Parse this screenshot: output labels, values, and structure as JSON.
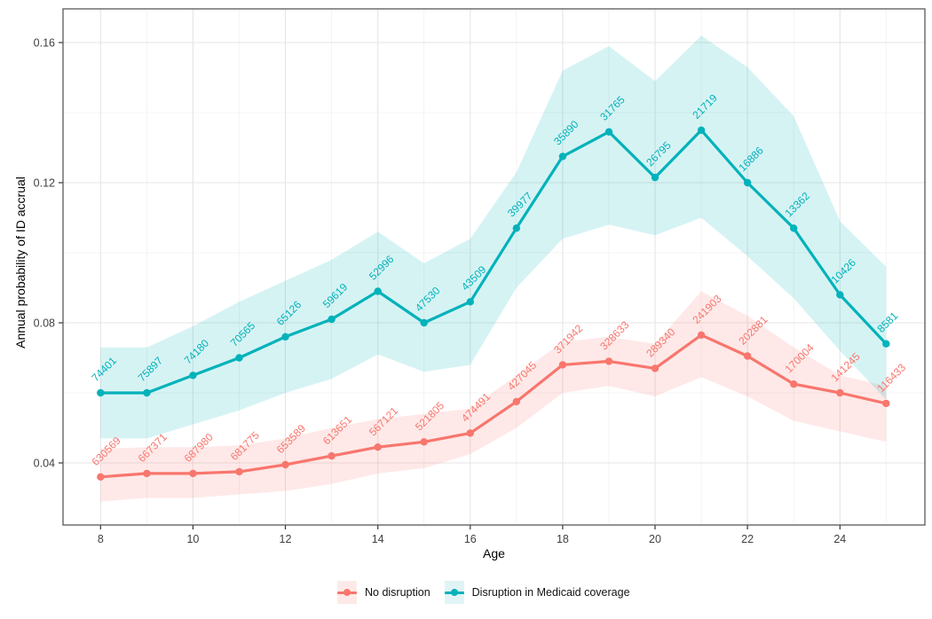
{
  "figure": {
    "background": "#ffffff"
  },
  "axes": {
    "x": {
      "label": "Age",
      "ticks": [
        "8",
        "10",
        "12",
        "14",
        "16",
        "18",
        "20",
        "22",
        "24"
      ],
      "tick_values": [
        8,
        10,
        12,
        14,
        16,
        18,
        20,
        22,
        24
      ],
      "minor": [
        9,
        11,
        13,
        15,
        17,
        19,
        21,
        23,
        25
      ],
      "range": [
        7.2,
        25.85
      ]
    },
    "y": {
      "label": "Annual probability of ID accrual",
      "ticks": [
        "0.04",
        "0.08",
        "0.12",
        "0.16"
      ],
      "tick_values": [
        0.04,
        0.08,
        0.12,
        0.16
      ],
      "minor": [
        0.06,
        0.1,
        0.14
      ],
      "range": [
        0.022,
        0.17
      ]
    }
  },
  "legend": {
    "position": "bottom",
    "items": [
      {
        "label": "No disruption",
        "color": "#F8766D",
        "fill": "#FDEAE8"
      },
      {
        "label": "Disruption in Medicaid coverage",
        "color": "#00B2BA",
        "fill": "#E1F4F5"
      }
    ]
  },
  "chart_data": {
    "type": "line",
    "title": "",
    "xlabel": "Age",
    "ylabel": "Annual probability of ID accrual",
    "grid": "on",
    "legend_position": "bottom",
    "x": [
      8,
      9,
      10,
      11,
      12,
      13,
      14,
      15,
      16,
      17,
      18,
      19,
      20,
      21,
      22,
      23,
      24,
      25
    ],
    "xlim": [
      7.2,
      25.85
    ],
    "ylim": [
      0.022,
      0.17
    ],
    "series": [
      {
        "id": "no-disruption",
        "name": "No disruption",
        "color": "#F8766D",
        "values": [
          0.036,
          0.037,
          0.037,
          0.0375,
          0.0395,
          0.042,
          0.0445,
          0.046,
          0.0485,
          0.0575,
          0.068,
          0.069,
          0.067,
          0.0765,
          0.0705,
          0.0625,
          0.06,
          0.057
        ],
        "labels": [
          "630569",
          "667371",
          "687980",
          "681775",
          "653589",
          "613651",
          "567121",
          "521805",
          "474491",
          "427045",
          "371942",
          "328633",
          "289340",
          "241903",
          "202881",
          "170004",
          "141245",
          "116433"
        ],
        "ci_upper": [
          0.044,
          0.0445,
          0.0445,
          0.045,
          0.047,
          0.05,
          0.0525,
          0.054,
          0.0555,
          0.065,
          0.0745,
          0.076,
          0.074,
          0.089,
          0.082,
          0.073,
          0.065,
          0.062
        ],
        "ci_lower": [
          0.029,
          0.03,
          0.03,
          0.031,
          0.032,
          0.034,
          0.037,
          0.0385,
          0.0425,
          0.05,
          0.06,
          0.062,
          0.059,
          0.0645,
          0.059,
          0.052,
          0.049,
          0.046
        ]
      },
      {
        "id": "disruption",
        "name": "Disruption in Medicaid coverage",
        "color": "#00B2BA",
        "values": [
          0.06,
          0.06,
          0.065,
          0.07,
          0.076,
          0.081,
          0.089,
          0.08,
          0.086,
          0.107,
          0.1275,
          0.1345,
          0.1215,
          0.135,
          0.12,
          0.107,
          0.088,
          0.074
        ],
        "labels": [
          "74401",
          "75897",
          "74180",
          "70565",
          "65126",
          "59619",
          "52996",
          "47530",
          "43509",
          "39977",
          "35890",
          "31765",
          "26795",
          "21719",
          "16886",
          "13362",
          "10426",
          "8581"
        ],
        "ci_upper": [
          0.073,
          0.073,
          0.079,
          0.086,
          0.092,
          0.098,
          0.106,
          0.097,
          0.104,
          0.123,
          0.152,
          0.159,
          0.149,
          0.162,
          0.153,
          0.139,
          0.109,
          0.096
        ],
        "ci_lower": [
          0.047,
          0.047,
          0.051,
          0.055,
          0.06,
          0.064,
          0.071,
          0.066,
          0.068,
          0.09,
          0.104,
          0.108,
          0.105,
          0.11,
          0.099,
          0.087,
          0.072,
          0.058
        ]
      }
    ]
  }
}
